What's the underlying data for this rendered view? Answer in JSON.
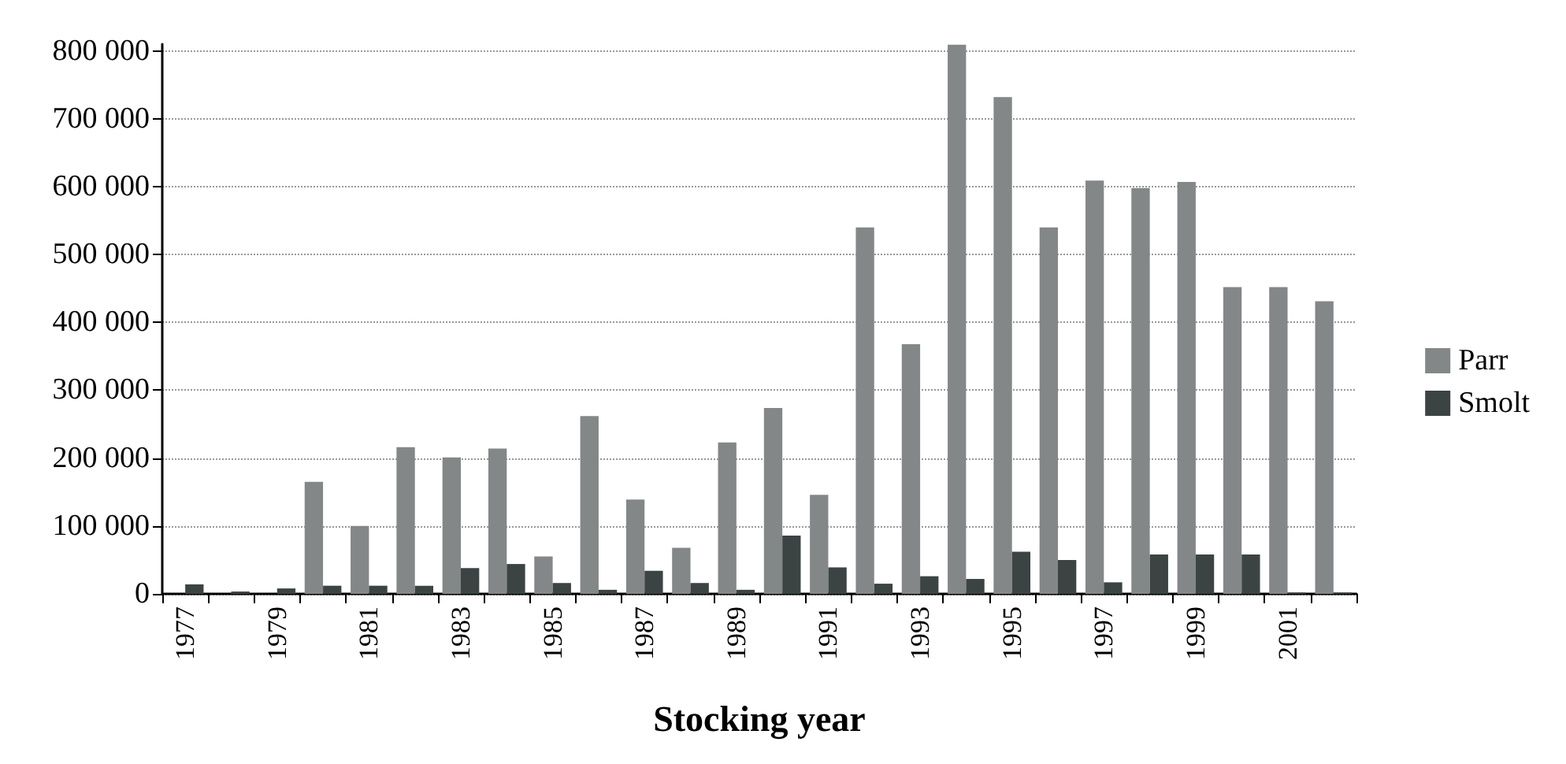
{
  "chart_data": {
    "type": "bar",
    "xlabel": "Stocking year",
    "categories": [
      "1977",
      null,
      "1979",
      null,
      "1981",
      null,
      "1983",
      null,
      "1985",
      null,
      "1987",
      null,
      "1989",
      null,
      "1991",
      null,
      "1993",
      null,
      "1995",
      null,
      "1997",
      null,
      "1999",
      null,
      "2001",
      null
    ],
    "series": [
      {
        "name": "Parr",
        "color": "#848787",
        "values": [
          0,
          0,
          0,
          165000,
          100000,
          216000,
          201000,
          214000,
          55000,
          262000,
          139000,
          68000,
          223000,
          274000,
          146000,
          540000,
          368000,
          809000,
          732000,
          540000,
          609000,
          598000,
          607000,
          452000,
          452000,
          431000
        ]
      },
      {
        "name": "Smolt",
        "color": "#3c4443",
        "values": [
          14000,
          3500,
          8000,
          12000,
          12000,
          12000,
          38000,
          44000,
          16000,
          6000,
          34000,
          16000,
          6000,
          86000,
          39000,
          15000,
          26000,
          22000,
          62000,
          50000,
          17000,
          58000,
          58000,
          58000,
          2000,
          2000
        ]
      }
    ],
    "ylim": [
      0,
      810000
    ],
    "yticks": [
      0,
      {
        "value": 100000,
        "label": "100 000"
      },
      {
        "value": 200000,
        "label": "200 000"
      },
      {
        "value": 300000,
        "label": "300 000"
      },
      {
        "value": 400000,
        "label": "400 000"
      },
      {
        "value": 500000,
        "label": "500 000"
      },
      {
        "value": 600000,
        "label": "600 000"
      },
      {
        "value": 700000,
        "label": "700 000"
      },
      {
        "value": 800000,
        "label": "800 000"
      }
    ],
    "grid": "y",
    "legend": "right"
  }
}
